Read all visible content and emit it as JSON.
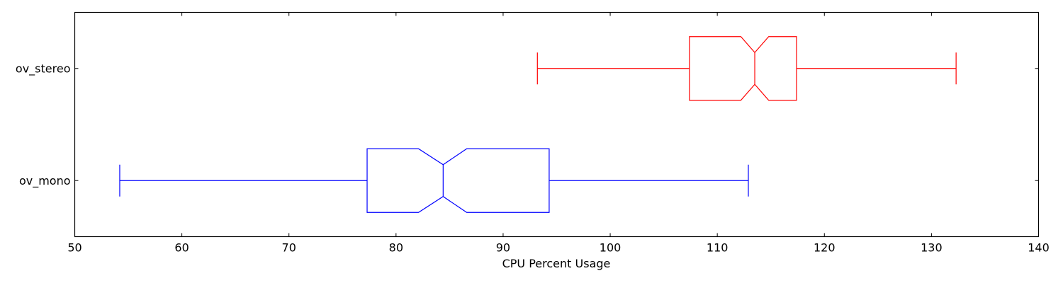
{
  "chart_data": {
    "type": "boxplot",
    "orientation": "horizontal",
    "notched": true,
    "title": "",
    "xlabel": "CPU Percent Usage",
    "ylabel": "",
    "xlim": [
      50,
      140
    ],
    "xticks": [
      50,
      60,
      70,
      80,
      90,
      100,
      110,
      120,
      130,
      140
    ],
    "grid": false,
    "series": [
      {
        "name": "ov_mono",
        "color": "#0000ff",
        "whisker_low": 54.2,
        "q1": 77.3,
        "notch_low": 82.1,
        "median": 84.4,
        "notch_high": 86.6,
        "q3": 94.3,
        "whisker_high": 112.9
      },
      {
        "name": "ov_stereo",
        "color": "#ff0000",
        "whisker_low": 93.2,
        "q1": 107.4,
        "notch_low": 112.2,
        "median": 113.5,
        "notch_high": 114.8,
        "q3": 117.4,
        "whisker_high": 132.3
      }
    ]
  }
}
